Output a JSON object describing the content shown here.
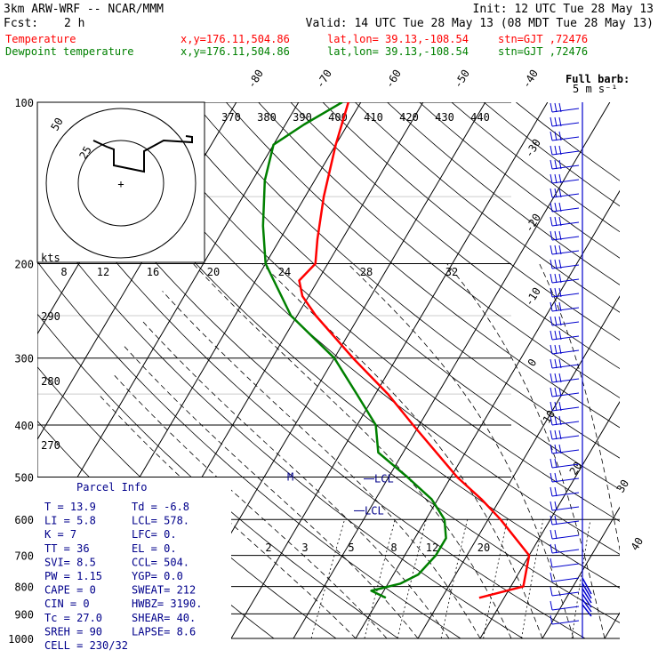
{
  "header": {
    "model": "3km ARW-WRF -- NCAR/MMM",
    "init": "Init: 12 UTC Tue 28 May 13",
    "fcst_label": "Fcst:",
    "fcst_value": "2 h",
    "valid": "Valid: 14 UTC Tue 28 May 13 (08 MDT Tue 28 May 13)",
    "legend": [
      {
        "name": "Temperature",
        "loc": "x,y=176.11,504.86",
        "latlon": "lat,lon= 39.13,-108.54",
        "stn": "stn=GJT ,72476",
        "color": "#ff0000"
      },
      {
        "name": "Dewpoint temperature",
        "loc": "x,y=176.11,504.86",
        "latlon": "lat,lon= 39.13,-108.54",
        "stn": "stn=GJT ,72476",
        "color": "#008000"
      }
    ],
    "barb_note_line1": "Full barb:",
    "barb_note_line2": "5 m s⁻¹"
  },
  "hodograph": {
    "units_label": "kts",
    "ring_labels": [
      "25",
      "50"
    ],
    "speed_ticks": [
      "8",
      "12",
      "16",
      "20",
      "24",
      "28",
      "32"
    ],
    "center_mark": "+"
  },
  "chart_data": {
    "type": "line",
    "title": "",
    "x_axis": "temperature (C)",
    "y_axis": "pressure (hPa)",
    "pressure_ticks": [
      100,
      200,
      300,
      400,
      500,
      600,
      700,
      800,
      900,
      1000
    ],
    "isotherm_labels": [
      -80,
      -70,
      -60,
      -50,
      -40,
      -30,
      -20,
      -10,
      0,
      10,
      20,
      30,
      40
    ],
    "theta_labels": [
      370,
      380,
      390,
      400,
      410,
      420,
      430,
      440
    ],
    "theta_left_labels": [
      290,
      280,
      270
    ],
    "mixing_ratio_labels": [
      "2",
      "3",
      "5",
      "8",
      "12",
      "20"
    ],
    "series": [
      {
        "name": "Temperature",
        "color": "#ff0000",
        "points": [
          [
            840,
            6
          ],
          [
            800,
            12
          ],
          [
            700,
            10
          ],
          [
            600,
            2
          ],
          [
            550,
            -3
          ],
          [
            500,
            -9
          ],
          [
            400,
            -21
          ],
          [
            350,
            -28
          ],
          [
            300,
            -37
          ],
          [
            250,
            -47
          ],
          [
            230,
            -51
          ],
          [
            215,
            -53
          ],
          [
            200,
            -52
          ],
          [
            180,
            -54
          ],
          [
            150,
            -57
          ],
          [
            120,
            -60
          ],
          [
            100,
            -62
          ]
        ]
      },
      {
        "name": "Dewpoint temperature",
        "color": "#008000",
        "points": [
          [
            840,
            -9
          ],
          [
            815,
            -12
          ],
          [
            790,
            -8
          ],
          [
            760,
            -6
          ],
          [
            700,
            -5
          ],
          [
            650,
            -5
          ],
          [
            600,
            -7
          ],
          [
            550,
            -11
          ],
          [
            500,
            -17
          ],
          [
            450,
            -24
          ],
          [
            400,
            -27
          ],
          [
            350,
            -33
          ],
          [
            300,
            -40
          ],
          [
            250,
            -51
          ],
          [
            200,
            -60
          ],
          [
            170,
            -64
          ],
          [
            140,
            -68
          ],
          [
            120,
            -70
          ],
          [
            110,
            -67
          ],
          [
            100,
            -63
          ]
        ]
      }
    ],
    "markers": {
      "M": 500,
      "LCL_lower": 578,
      "LCL_upper": 504
    }
  },
  "parcel_info": {
    "title": "Parcel Info",
    "rows": [
      [
        "T  =   13.9",
        "Td = -6.8"
      ],
      [
        "LI =    5.8",
        "LCL=  578."
      ],
      [
        "K  =      7",
        "LFC=     0."
      ],
      [
        "TT =     36",
        "EL =     0."
      ],
      [
        "SVI=    8.5",
        "CCL=  504."
      ],
      [
        "PW =   1.15",
        "YGP=   0.0"
      ],
      [
        "CAPE =    0",
        "SWEAT=  212"
      ],
      [
        "CIN =     0",
        "HWBZ= 3190."
      ],
      [
        "Tc =   27.0",
        "SHEAR= 40."
      ],
      [
        "SREH =   90",
        "LAPSE=  8.6"
      ],
      [
        "CELL = 230/32",
        ""
      ]
    ]
  },
  "labels": {
    "lcl": "LCL",
    "m": "M"
  }
}
